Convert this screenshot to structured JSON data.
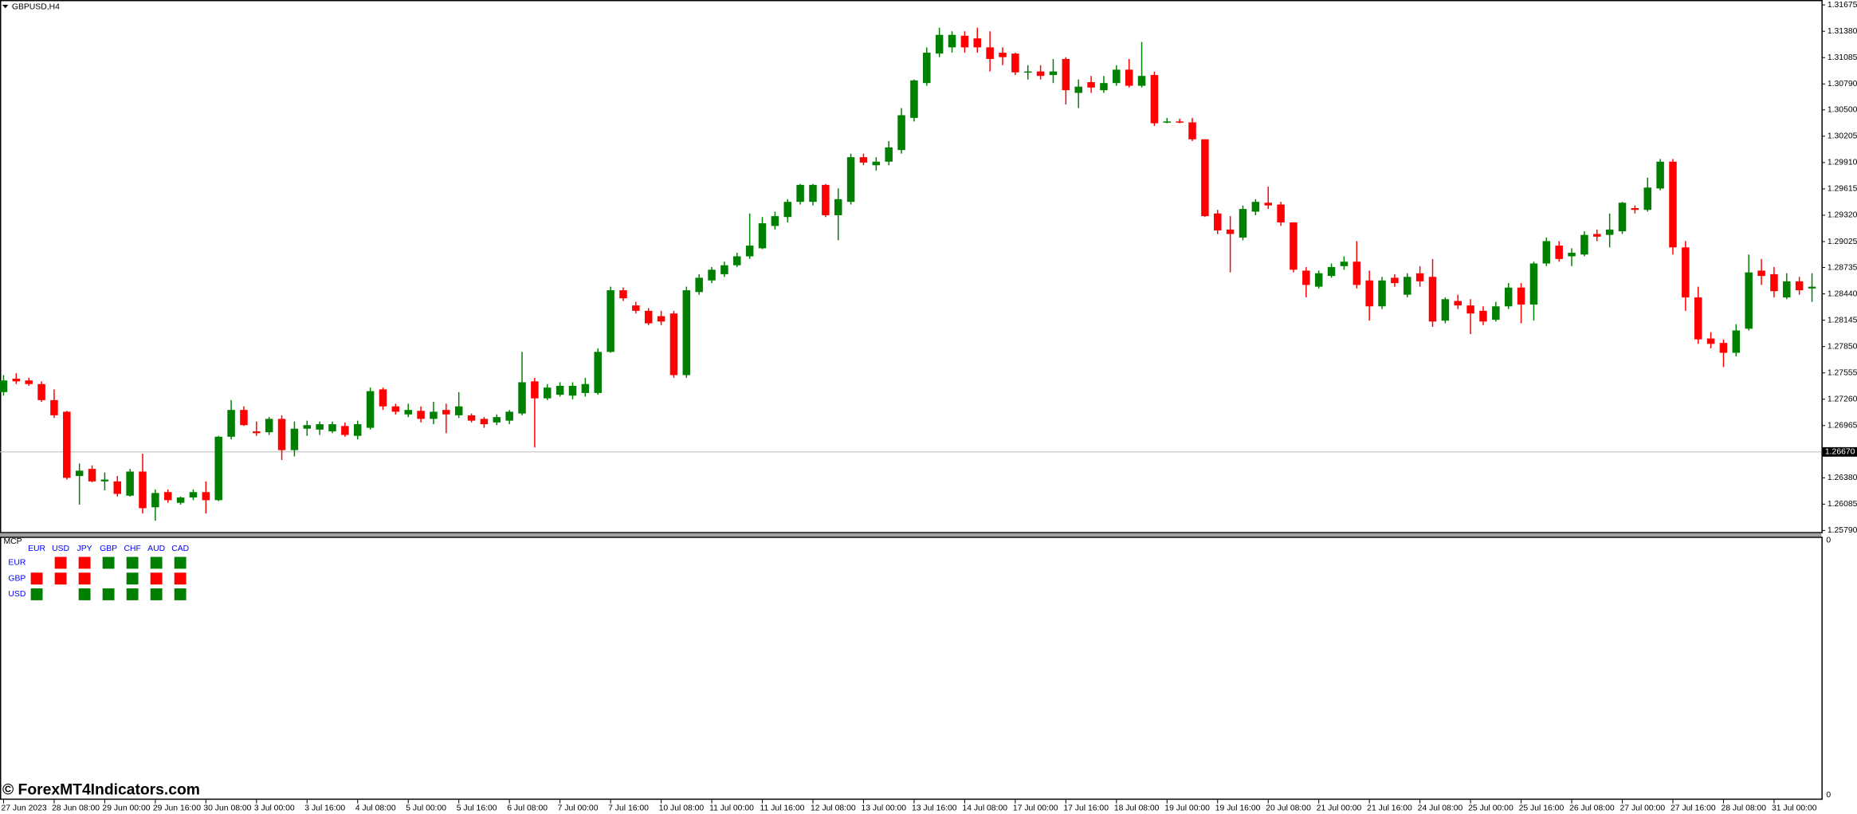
{
  "chart_data": {
    "type": "candlestick",
    "title": "GBPUSD,H4",
    "categories": [
      "27 Jun 2023",
      null,
      null,
      null,
      "28 Jun 08:00",
      null,
      null,
      null,
      "29 Jun 00:00",
      null,
      null,
      null,
      "29 Jun 16:00",
      null,
      null,
      null,
      "30 Jun 08:00",
      null,
      null,
      null,
      "3 Jul 00:00",
      null,
      null,
      null,
      "3 Jul 16:00",
      null,
      null,
      null,
      "4 Jul 08:00",
      null,
      null,
      null,
      "5 Jul 00:00",
      null,
      null,
      null,
      "5 Jul 16:00",
      null,
      null,
      null,
      "6 Jul 08:00",
      null,
      null,
      null,
      "7 Jul 00:00",
      null,
      null,
      null,
      "7 Jul 16:00",
      null,
      null,
      null,
      "10 Jul 08:00",
      null,
      null,
      null,
      "11 Jul 00:00",
      null,
      null,
      null,
      "11 Jul 16:00",
      null,
      null,
      null,
      "12 Jul 08:00",
      null,
      null,
      null,
      "13 Jul 00:00",
      null,
      null,
      null,
      "13 Jul 16:00",
      null,
      null,
      null,
      "14 Jul 08:00",
      null,
      null,
      null,
      "17 Jul 00:00",
      null,
      null,
      null,
      "17 Jul 16:00",
      null,
      null,
      null,
      "18 Jul 08:00",
      null,
      null,
      null,
      "19 Jul 00:00",
      null,
      null,
      null,
      "19 Jul 16:00",
      null,
      null,
      null,
      "20 Jul 08:00",
      null,
      null,
      null,
      "21 Jul 00:00",
      null,
      null,
      null,
      "21 Jul 16:00",
      null,
      null,
      null,
      "24 Jul 08:00",
      null,
      null,
      null,
      "25 Jul 00:00",
      null,
      null,
      null,
      "25 Jul 16:00",
      null,
      null,
      null,
      "26 Jul 08:00",
      null,
      null,
      null,
      "27 Jul 00:00",
      null,
      null,
      null,
      "27 Jul 16:00",
      null,
      null,
      null,
      "28 Jul 08:00",
      null,
      null,
      null,
      "31 Jul 00:00",
      null,
      null,
      null
    ],
    "open": [
      1.2734,
      1.2749,
      1.2747,
      1.2743,
      1.2725,
      1.2712,
      1.264,
      1.2648,
      1.2634,
      1.2634,
      1.2618,
      1.2645,
      1.2605,
      1.2622,
      1.261,
      1.2616,
      1.2622,
      1.2613,
      1.2684,
      1.2714,
      1.269,
      1.2689,
      1.2704,
      1.2669,
      1.2693,
      1.2692,
      1.269,
      1.2696,
      1.2685,
      1.2694,
      1.2737,
      1.2718,
      1.2709,
      1.2713,
      1.2704,
      1.2714,
      1.2708,
      1.2708,
      1.2704,
      1.27,
      1.2702,
      1.271,
      1.2746,
      1.2727,
      1.2731,
      1.273,
      1.2733,
      1.2733,
      1.2779,
      1.2848,
      1.2831,
      1.2825,
      1.2819,
      1.2822,
      1.2753,
      1.2846,
      1.2859,
      1.2866,
      1.2876,
      1.2886,
      1.2895,
      1.292,
      1.293,
      1.2947,
      1.2947,
      1.2966,
      1.2932,
      1.2947,
      1.2997,
      1.2988,
      1.2992,
      1.3005,
      1.3041,
      1.308,
      1.3113,
      1.312,
      1.3133,
      1.313,
      1.312,
      1.3114,
      1.3113,
      1.3092,
      1.3093,
      1.3089,
      1.3107,
      1.3069,
      1.3081,
      1.3072,
      1.308,
      1.3095,
      1.3077,
      1.3089,
      1.3036,
      1.3037,
      1.3036,
      1.3017,
      1.2934,
      1.2916,
      1.2907,
      1.2936,
      1.2946,
      1.2944,
      1.2924,
      1.287,
      1.2852,
      1.2864,
      1.2875,
      1.288,
      1.2859,
      1.283,
      1.2862,
      1.2843,
      1.2867,
      1.2863,
      1.2814,
      1.2836,
      1.2831,
      1.2825,
      1.2815,
      1.283,
      1.2851,
      1.2832,
      1.2878,
      1.2898,
      1.2886,
      1.2888,
      1.2911,
      1.291,
      1.2914,
      1.294,
      1.2938,
      1.2962,
      1.2992,
      1.2896,
      1.284,
      1.2794,
      1.2789,
      1.2778,
      1.2805,
      1.287,
      1.2866,
      1.284,
      1.2858,
      1.285
    ],
    "high": [
      1.2753,
      1.2755,
      1.275,
      1.2746,
      1.2737,
      1.2713,
      1.2654,
      1.2652,
      1.2644,
      1.264,
      1.2648,
      1.2665,
      1.2625,
      1.2625,
      1.2617,
      1.2625,
      1.2634,
      1.2685,
      1.2725,
      1.2718,
      1.2701,
      1.2706,
      1.2708,
      1.2701,
      1.2702,
      1.2701,
      1.2701,
      1.27,
      1.2702,
      1.2739,
      1.2739,
      1.2721,
      1.2721,
      1.2718,
      1.2723,
      1.2721,
      1.2734,
      1.271,
      1.2706,
      1.2709,
      1.2714,
      1.2779,
      1.275,
      1.2743,
      1.2745,
      1.2745,
      1.275,
      1.2783,
      1.2852,
      1.2851,
      1.2835,
      1.2828,
      1.2825,
      1.2825,
      1.2852,
      1.2866,
      1.2874,
      1.288,
      1.289,
      1.2934,
      1.293,
      1.2936,
      1.295,
      1.2967,
      1.2967,
      1.2967,
      1.2962,
      1.3001,
      1.3001,
      1.2997,
      1.3015,
      1.3052,
      1.3084,
      1.312,
      1.3142,
      1.3138,
      1.3138,
      1.3142,
      1.3138,
      1.312,
      1.3114,
      1.31,
      1.31,
      1.3107,
      1.3109,
      1.3084,
      1.3088,
      1.3088,
      1.31,
      1.3107,
      1.3126,
      1.3093,
      1.3041,
      1.304,
      1.3041,
      1.3017,
      1.2938,
      1.2931,
      1.2943,
      1.295,
      1.2964,
      1.2947,
      1.2924,
      1.2874,
      1.287,
      1.2878,
      1.2886,
      1.2903,
      1.287,
      1.2863,
      1.2866,
      1.2867,
      1.2875,
      1.2883,
      1.284,
      1.2843,
      1.2838,
      1.283,
      1.2835,
      1.2856,
      1.2856,
      1.288,
      1.2907,
      1.2903,
      1.2895,
      1.2914,
      1.2916,
      1.2934,
      1.2947,
      1.2943,
      1.2974,
      1.2995,
      1.2995,
      1.2903,
      1.2852,
      1.2801,
      1.2793,
      1.281,
      1.2888,
      1.2883,
      1.2874,
      1.2867,
      1.2863,
      1.2867
    ],
    "low": [
      1.273,
      1.2743,
      1.2741,
      1.2723,
      1.2705,
      1.2636,
      1.2608,
      1.2633,
      1.2624,
      1.2617,
      1.2617,
      1.2598,
      1.259,
      1.261,
      1.2608,
      1.2613,
      1.2598,
      1.2612,
      1.2681,
      1.2696,
      1.2685,
      1.2686,
      1.2658,
      1.2662,
      1.2685,
      1.2686,
      1.2688,
      1.2684,
      1.2681,
      1.2692,
      1.2714,
      1.2709,
      1.2706,
      1.27,
      1.2698,
      1.2688,
      1.2705,
      1.27,
      1.2694,
      1.2697,
      1.2698,
      1.2708,
      1.2672,
      1.2725,
      1.2729,
      1.2726,
      1.2729,
      1.2731,
      1.2778,
      1.2836,
      1.2822,
      1.2809,
      1.2809,
      1.275,
      1.275,
      1.2843,
      1.2856,
      1.2863,
      1.2874,
      1.2883,
      1.2894,
      1.2916,
      1.2924,
      1.2944,
      1.2943,
      1.293,
      1.2904,
      1.2944,
      1.2988,
      1.2982,
      1.2988,
      1.3001,
      1.3037,
      1.3077,
      1.3109,
      1.3114,
      1.3114,
      1.3114,
      1.3093,
      1.31,
      1.3089,
      1.3084,
      1.3084,
      1.308,
      1.3056,
      1.3052,
      1.3069,
      1.3069,
      1.3077,
      1.3075,
      1.3075,
      1.3032,
      1.3035,
      1.3035,
      1.3015,
      1.293,
      1.2911,
      1.2868,
      1.2904,
      1.2932,
      1.2939,
      1.292,
      1.2868,
      1.284,
      1.285,
      1.2862,
      1.2871,
      1.285,
      1.2814,
      1.2827,
      1.2852,
      1.284,
      1.2852,
      1.2807,
      1.2811,
      1.2827,
      1.2799,
      1.2809,
      1.2813,
      1.2827,
      1.2811,
      1.2814,
      1.2875,
      1.288,
      1.2875,
      1.2886,
      1.2903,
      1.2896,
      1.2911,
      1.2934,
      1.2936,
      1.296,
      1.2888,
      1.2825,
      1.2788,
      1.2783,
      1.2762,
      1.2774,
      1.2803,
      1.2854,
      1.284,
      1.2838,
      1.2843,
      1.2835
    ],
    "close": [
      1.2747,
      1.2746,
      1.2743,
      1.2725,
      1.2708,
      1.2638,
      1.2646,
      1.2634,
      1.2636,
      1.262,
      1.2645,
      1.2604,
      1.2621,
      1.2613,
      1.2616,
      1.2622,
      1.2613,
      1.2684,
      1.2714,
      1.2697,
      1.2688,
      1.2704,
      1.2669,
      1.2693,
      1.2697,
      1.2698,
      1.2698,
      1.2686,
      1.2698,
      1.2735,
      1.2718,
      1.2712,
      1.2714,
      1.2704,
      1.2712,
      1.2709,
      1.2718,
      1.2702,
      1.2698,
      1.2706,
      1.2712,
      1.2745,
      1.2727,
      1.2739,
      1.2741,
      1.2741,
      1.2743,
      1.2779,
      1.2848,
      1.2839,
      1.2825,
      1.2811,
      1.2813,
      1.2753,
      1.2848,
      1.2862,
      1.2871,
      1.2876,
      1.2886,
      1.2898,
      1.2923,
      1.2931,
      1.2947,
      1.2966,
      1.2966,
      1.2932,
      1.295,
      1.2997,
      1.2991,
      1.2992,
      1.3008,
      1.3044,
      1.3083,
      1.3114,
      1.3134,
      1.3134,
      1.312,
      1.312,
      1.3107,
      1.3109,
      1.3092,
      1.3093,
      1.3088,
      1.3093,
      1.3072,
      1.3076,
      1.3075,
      1.308,
      1.3095,
      1.3077,
      1.3088,
      1.3035,
      1.3037,
      1.3036,
      1.3017,
      1.2931,
      1.2915,
      1.2911,
      1.2939,
      1.2947,
      1.2943,
      1.2924,
      1.2871,
      1.2854,
      1.2867,
      1.2874,
      1.288,
      1.2854,
      1.283,
      1.2859,
      1.2856,
      1.2863,
      1.2858,
      1.2813,
      1.2838,
      1.2831,
      1.2822,
      1.2813,
      1.283,
      1.2851,
      1.2832,
      1.2878,
      1.2903,
      1.2883,
      1.289,
      1.291,
      1.2908,
      1.2916,
      1.2946,
      1.2938,
      1.2963,
      1.2992,
      1.2896,
      1.284,
      1.2793,
      1.2788,
      1.2778,
      1.2803,
      1.2868,
      1.2864,
      1.2847,
      1.2858,
      1.2848,
      1.2852
    ],
    "up_color": "#008000",
    "down_color": "#ff0000",
    "ylim": [
      1.2576,
      1.3173
    ],
    "yticks": [
      1.31675,
      {
        "value": 1.3138,
        "label": "1.31380"
      },
      1.31085,
      {
        "value": 1.3079,
        "label": "1.30790"
      },
      {
        "value": 1.305,
        "label": "1.30500"
      },
      1.30205,
      {
        "value": 1.2991,
        "label": "1.29910"
      },
      1.29615,
      {
        "value": 1.2932,
        "label": "1.29320"
      },
      1.29025,
      1.28735,
      {
        "value": 1.2844,
        "label": "1.28440"
      },
      1.28145,
      {
        "value": 1.2785,
        "label": "1.27850"
      },
      1.27555,
      {
        "value": 1.2726,
        "label": "1.27260"
      },
      1.26965,
      {
        "value": 1.2638,
        "label": "1.26380"
      },
      1.26085,
      {
        "value": 1.2579,
        "label": "1.25790"
      }
    ],
    "hline": {
      "value": 1.2667,
      "label": "1.26670"
    }
  },
  "indicator": {
    "title": "MCP",
    "columns": [
      "EUR",
      "USD",
      "JPY",
      "GBP",
      "CHF",
      "AUD",
      "CAD"
    ],
    "rows": [
      {
        "name": "EUR",
        "cells": [
          null,
          "#ff0000",
          "#ff0000",
          "#008000",
          "#008000",
          "#008000",
          "#008000"
        ]
      },
      {
        "name": "GBP",
        "cells": [
          "#ff0000",
          "#ff0000",
          "#ff0000",
          null,
          "#008000",
          "#ff0000",
          "#ff0000"
        ]
      },
      {
        "name": "USD",
        "cells": [
          "#008000",
          null,
          "#008000",
          "#008000",
          "#008000",
          "#008000",
          "#008000"
        ]
      }
    ],
    "scale_labels": [
      0,
      0
    ],
    "label_color": "#0000ff"
  },
  "watermark": "© ForexMT4Indicators.com"
}
